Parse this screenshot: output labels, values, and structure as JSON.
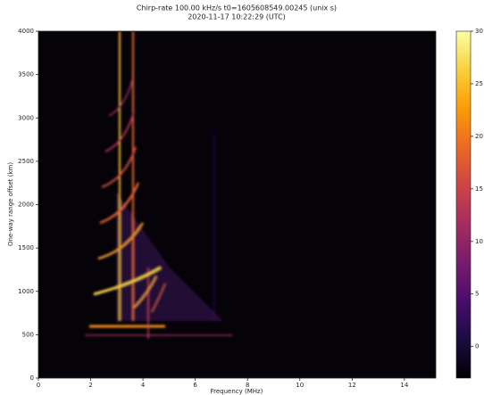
{
  "chart_data": {
    "type": "heatmap",
    "title": "Chirp-rate 100.00 kHz/s t0=1605608549.00245 (unix s)",
    "subtitle": "2020-11-17 10:22:29 (UTC)",
    "xlabel": "Frequency (MHz)",
    "ylabel": "One-way range offset (km)",
    "xlim": [
      0,
      15.2
    ],
    "xticks": [
      0,
      2,
      4,
      6,
      8,
      10,
      12,
      14
    ],
    "ylim": [
      0,
      4000
    ],
    "yticks": [
      0,
      500,
      1000,
      1500,
      2000,
      2500,
      3000,
      3500,
      4000
    ],
    "colormap": "inferno",
    "clim": [
      -3,
      30
    ],
    "cticks": [
      0,
      5,
      10,
      15,
      20,
      25,
      30
    ]
  }
}
